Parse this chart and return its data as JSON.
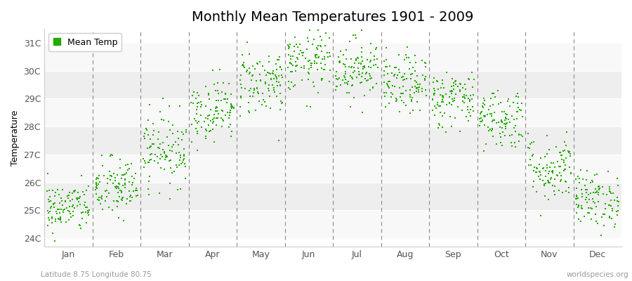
{
  "title": "Monthly Mean Temperatures 1901 - 2009",
  "ylabel": "Temperature",
  "xlabel_bottom_left": "Latitude 8.75 Longitude 80.75",
  "xlabel_bottom_right": "worldspecies.org",
  "legend_label": "Mean Temp",
  "ytick_labels": [
    "24C",
    "25C",
    "26C",
    "27C",
    "28C",
    "29C",
    "30C",
    "31C"
  ],
  "ytick_values": [
    24,
    25,
    26,
    27,
    28,
    29,
    30,
    31
  ],
  "ylim": [
    23.7,
    31.5
  ],
  "months": [
    "Jan",
    "Feb",
    "Mar",
    "Apr",
    "May",
    "Jun",
    "Jul",
    "Aug",
    "Sep",
    "Oct",
    "Nov",
    "Dec"
  ],
  "month_positions": [
    0.5,
    1.5,
    2.5,
    3.5,
    4.5,
    5.5,
    6.5,
    7.5,
    8.5,
    9.5,
    10.5,
    11.5
  ],
  "month_boundaries": [
    0,
    1,
    2,
    3,
    4,
    5,
    6,
    7,
    8,
    9,
    10,
    11,
    12
  ],
  "dot_color": "#22aa00",
  "dot_size": 3,
  "background_color": "#ffffff",
  "stripe_color_odd": "#eeeeee",
  "stripe_color_even": "#f8f8f8",
  "title_fontsize": 14,
  "axis_fontsize": 9,
  "legend_fontsize": 9,
  "n_years": 109,
  "seed": 42,
  "mean_temps": [
    25.1,
    25.8,
    27.2,
    28.6,
    29.6,
    30.3,
    30.1,
    29.5,
    29.0,
    28.3,
    26.5,
    25.4
  ],
  "std_temps": [
    0.45,
    0.55,
    0.65,
    0.55,
    0.6,
    0.55,
    0.55,
    0.52,
    0.52,
    0.55,
    0.6,
    0.5
  ]
}
